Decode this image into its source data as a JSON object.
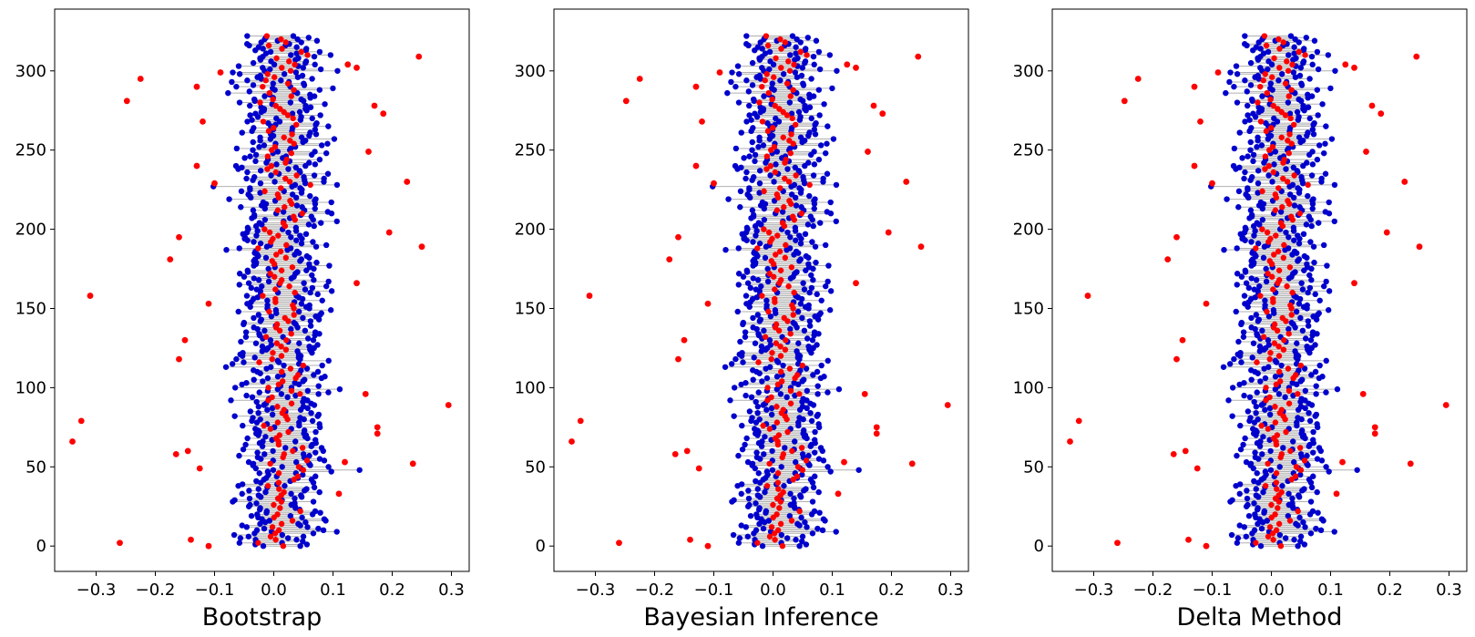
{
  "chart_data": [
    {
      "type": "scatter",
      "title": "",
      "xlabel": "Bootstrap",
      "ylabel": "",
      "xlim": [
        -0.37,
        0.33
      ],
      "ylim": [
        -16,
        339
      ],
      "xticks": [
        -0.3,
        -0.2,
        -0.1,
        0.0,
        0.1,
        0.2,
        0.3
      ],
      "xtick_labels": [
        "−0.3",
        "−0.2",
        "−0.1",
        "0.0",
        "0.1",
        "0.2",
        "0.3"
      ],
      "yticks": [
        0,
        50,
        100,
        150,
        200,
        250,
        300
      ],
      "ytick_labels": [
        "0",
        "50",
        "100",
        "150",
        "200",
        "250",
        "300"
      ],
      "grid": false,
      "n_observations": 323,
      "center_line_x": 0.0,
      "point_estimate_color": "#ff0000",
      "interval_endpoint_color": "#0000cc",
      "interval_line_color": "#b0b0b0",
      "red_outlier_points": [
        {
          "x": 0.245,
          "y": 309
        },
        {
          "x": -0.225,
          "y": 295
        },
        {
          "x": -0.248,
          "y": 281
        },
        {
          "x": 0.14,
          "y": 302
        },
        {
          "x": 0.125,
          "y": 304
        },
        {
          "x": 0.185,
          "y": 273
        },
        {
          "x": 0.17,
          "y": 278
        },
        {
          "x": -0.09,
          "y": 299
        },
        {
          "x": -0.13,
          "y": 290
        },
        {
          "x": -0.12,
          "y": 268
        },
        {
          "x": 0.16,
          "y": 249
        },
        {
          "x": -0.13,
          "y": 240
        },
        {
          "x": 0.225,
          "y": 230
        },
        {
          "x": -0.1,
          "y": 229
        },
        {
          "x": 0.195,
          "y": 198
        },
        {
          "x": 0.25,
          "y": 189
        },
        {
          "x": -0.175,
          "y": 181
        },
        {
          "x": -0.16,
          "y": 195
        },
        {
          "x": 0.14,
          "y": 166
        },
        {
          "x": -0.31,
          "y": 158
        },
        {
          "x": -0.11,
          "y": 153
        },
        {
          "x": -0.15,
          "y": 130
        },
        {
          "x": -0.16,
          "y": 118
        },
        {
          "x": 0.155,
          "y": 96
        },
        {
          "x": 0.295,
          "y": 89
        },
        {
          "x": -0.325,
          "y": 79
        },
        {
          "x": 0.175,
          "y": 75
        },
        {
          "x": 0.175,
          "y": 71
        },
        {
          "x": -0.34,
          "y": 66
        },
        {
          "x": -0.165,
          "y": 58
        },
        {
          "x": -0.145,
          "y": 60
        },
        {
          "x": 0.235,
          "y": 52
        },
        {
          "x": 0.12,
          "y": 53
        },
        {
          "x": -0.125,
          "y": 49
        },
        {
          "x": 0.11,
          "y": 33
        },
        {
          "x": -0.14,
          "y": 4
        },
        {
          "x": -0.26,
          "y": 2
        },
        {
          "x": -0.11,
          "y": 0
        }
      ]
    },
    {
      "type": "scatter",
      "title": "",
      "xlabel": "Bayesian Inference",
      "ylabel": "",
      "xlim": [
        -0.37,
        0.33
      ],
      "ylim": [
        -16,
        339
      ],
      "xticks": [
        -0.3,
        -0.2,
        -0.1,
        0.0,
        0.1,
        0.2,
        0.3
      ],
      "xtick_labels": [
        "−0.3",
        "−0.2",
        "−0.1",
        "0.0",
        "0.1",
        "0.2",
        "0.3"
      ],
      "yticks": [
        0,
        50,
        100,
        150,
        200,
        250,
        300
      ],
      "ytick_labels": [
        "0",
        "50",
        "100",
        "150",
        "200",
        "250",
        "300"
      ],
      "grid": false,
      "n_observations": 323,
      "center_line_x": 0.0,
      "point_estimate_color": "#ff0000",
      "interval_endpoint_color": "#0000cc",
      "interval_line_color": "#b0b0b0",
      "red_outlier_points": [
        {
          "x": 0.245,
          "y": 309
        },
        {
          "x": -0.225,
          "y": 295
        },
        {
          "x": -0.248,
          "y": 281
        },
        {
          "x": 0.14,
          "y": 302
        },
        {
          "x": 0.125,
          "y": 304
        },
        {
          "x": 0.185,
          "y": 273
        },
        {
          "x": 0.17,
          "y": 278
        },
        {
          "x": -0.09,
          "y": 299
        },
        {
          "x": -0.13,
          "y": 290
        },
        {
          "x": -0.12,
          "y": 268
        },
        {
          "x": 0.16,
          "y": 249
        },
        {
          "x": -0.13,
          "y": 240
        },
        {
          "x": 0.225,
          "y": 230
        },
        {
          "x": -0.1,
          "y": 229
        },
        {
          "x": 0.195,
          "y": 198
        },
        {
          "x": 0.25,
          "y": 189
        },
        {
          "x": -0.175,
          "y": 181
        },
        {
          "x": -0.16,
          "y": 195
        },
        {
          "x": 0.14,
          "y": 166
        },
        {
          "x": -0.31,
          "y": 158
        },
        {
          "x": -0.11,
          "y": 153
        },
        {
          "x": -0.15,
          "y": 130
        },
        {
          "x": -0.16,
          "y": 118
        },
        {
          "x": 0.155,
          "y": 96
        },
        {
          "x": 0.295,
          "y": 89
        },
        {
          "x": -0.325,
          "y": 79
        },
        {
          "x": 0.175,
          "y": 75
        },
        {
          "x": 0.175,
          "y": 71
        },
        {
          "x": -0.34,
          "y": 66
        },
        {
          "x": -0.165,
          "y": 58
        },
        {
          "x": -0.145,
          "y": 60
        },
        {
          "x": 0.235,
          "y": 52
        },
        {
          "x": 0.12,
          "y": 53
        },
        {
          "x": -0.125,
          "y": 49
        },
        {
          "x": 0.11,
          "y": 33
        },
        {
          "x": -0.14,
          "y": 4
        },
        {
          "x": -0.26,
          "y": 2
        },
        {
          "x": -0.11,
          "y": 0
        }
      ]
    },
    {
      "type": "scatter",
      "title": "",
      "xlabel": "Delta Method",
      "ylabel": "",
      "xlim": [
        -0.37,
        0.33
      ],
      "ylim": [
        -16,
        339
      ],
      "xticks": [
        -0.3,
        -0.2,
        -0.1,
        0.0,
        0.1,
        0.2,
        0.3
      ],
      "xtick_labels": [
        "−0.3",
        "−0.2",
        "−0.1",
        "0.0",
        "0.1",
        "0.2",
        "0.3"
      ],
      "yticks": [
        0,
        50,
        100,
        150,
        200,
        250,
        300
      ],
      "ytick_labels": [
        "0",
        "50",
        "100",
        "150",
        "200",
        "250",
        "300"
      ],
      "grid": false,
      "n_observations": 323,
      "center_line_x": 0.0,
      "point_estimate_color": "#ff0000",
      "interval_endpoint_color": "#0000cc",
      "interval_line_color": "#b0b0b0",
      "red_outlier_points": [
        {
          "x": 0.245,
          "y": 309
        },
        {
          "x": -0.225,
          "y": 295
        },
        {
          "x": -0.248,
          "y": 281
        },
        {
          "x": 0.14,
          "y": 302
        },
        {
          "x": 0.125,
          "y": 304
        },
        {
          "x": 0.185,
          "y": 273
        },
        {
          "x": 0.17,
          "y": 278
        },
        {
          "x": -0.09,
          "y": 299
        },
        {
          "x": -0.13,
          "y": 290
        },
        {
          "x": -0.12,
          "y": 268
        },
        {
          "x": 0.16,
          "y": 249
        },
        {
          "x": -0.13,
          "y": 240
        },
        {
          "x": 0.225,
          "y": 230
        },
        {
          "x": -0.1,
          "y": 229
        },
        {
          "x": 0.195,
          "y": 198
        },
        {
          "x": 0.25,
          "y": 189
        },
        {
          "x": -0.175,
          "y": 181
        },
        {
          "x": -0.16,
          "y": 195
        },
        {
          "x": 0.14,
          "y": 166
        },
        {
          "x": -0.31,
          "y": 158
        },
        {
          "x": -0.11,
          "y": 153
        },
        {
          "x": -0.15,
          "y": 130
        },
        {
          "x": -0.16,
          "y": 118
        },
        {
          "x": 0.155,
          "y": 96
        },
        {
          "x": 0.295,
          "y": 89
        },
        {
          "x": -0.325,
          "y": 79
        },
        {
          "x": 0.175,
          "y": 75
        },
        {
          "x": 0.175,
          "y": 71
        },
        {
          "x": -0.34,
          "y": 66
        },
        {
          "x": -0.165,
          "y": 58
        },
        {
          "x": -0.145,
          "y": 60
        },
        {
          "x": 0.235,
          "y": 52
        },
        {
          "x": 0.12,
          "y": 53
        },
        {
          "x": -0.125,
          "y": 49
        },
        {
          "x": 0.11,
          "y": 33
        },
        {
          "x": -0.14,
          "y": 4
        },
        {
          "x": -0.26,
          "y": 2
        },
        {
          "x": -0.11,
          "y": 0
        }
      ]
    }
  ]
}
